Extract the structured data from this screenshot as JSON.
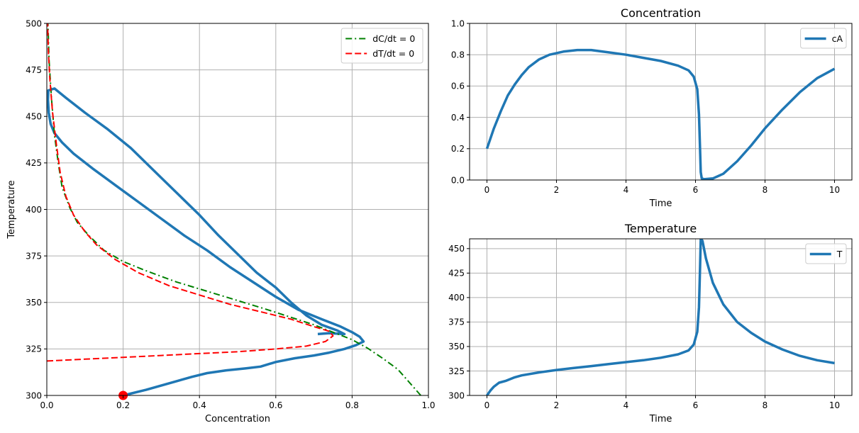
{
  "chart_data": [
    {
      "id": "phase",
      "type": "line",
      "title": "",
      "xlabel": "Concentration",
      "ylabel": "Temperature",
      "xlim": [
        0.0,
        1.0
      ],
      "ylim": [
        300,
        500
      ],
      "xticks": [
        0.0,
        0.2,
        0.4,
        0.6,
        0.8,
        1.0
      ],
      "xtick_labels": [
        "0.0",
        "0.2",
        "0.4",
        "0.6",
        "0.8",
        "1.0"
      ],
      "yticks": [
        300,
        325,
        350,
        375,
        400,
        425,
        450,
        475,
        500
      ],
      "ytick_labels": [
        "300",
        "325",
        "350",
        "375",
        "400",
        "425",
        "450",
        "475",
        "500"
      ],
      "grid": true,
      "legend": "top-right",
      "series": [
        {
          "name": "trajectory",
          "in_legend": false,
          "color": "#1f77b4",
          "style": "solid",
          "width": 3.5,
          "points": [
            [
              0.2,
              300
            ],
            [
              0.26,
              303
            ],
            [
              0.32,
              306.5
            ],
            [
              0.38,
              310
            ],
            [
              0.42,
              312
            ],
            [
              0.47,
              313.5
            ],
            [
              0.52,
              314.5
            ],
            [
              0.56,
              315.5
            ],
            [
              0.6,
              318
            ],
            [
              0.65,
              320
            ],
            [
              0.7,
              321.5
            ],
            [
              0.74,
              323
            ],
            [
              0.78,
              325
            ],
            [
              0.81,
              327
            ],
            [
              0.83,
              329
            ],
            [
              0.82,
              331.5
            ],
            [
              0.8,
              334
            ],
            [
              0.77,
              337
            ],
            [
              0.72,
              341
            ],
            [
              0.66,
              346
            ],
            [
              0.6,
              353
            ],
            [
              0.54,
              361
            ],
            [
              0.48,
              369
            ],
            [
              0.42,
              378
            ],
            [
              0.36,
              386
            ],
            [
              0.3,
              395
            ],
            [
              0.24,
              404
            ],
            [
              0.18,
              413
            ],
            [
              0.12,
              422
            ],
            [
              0.07,
              430
            ],
            [
              0.04,
              436
            ],
            [
              0.02,
              441
            ],
            [
              0.01,
              446
            ],
            [
              0.005,
              452
            ],
            [
              0.003,
              459
            ],
            [
              0.004,
              464
            ],
            [
              0.02,
              465
            ],
            [
              0.05,
              460
            ],
            [
              0.1,
              452
            ],
            [
              0.16,
              443
            ],
            [
              0.22,
              433
            ],
            [
              0.28,
              421
            ],
            [
              0.34,
              409
            ],
            [
              0.4,
              397
            ],
            [
              0.45,
              386
            ],
            [
              0.5,
              376
            ],
            [
              0.55,
              366
            ],
            [
              0.6,
              358
            ],
            [
              0.64,
              350
            ],
            [
              0.68,
              343
            ],
            [
              0.72,
              338
            ],
            [
              0.76,
              335
            ],
            [
              0.78,
              333
            ],
            [
              0.74,
              333.5
            ],
            [
              0.71,
              333
            ]
          ]
        },
        {
          "name": "dC/dt = 0",
          "in_legend": true,
          "color": "#008000",
          "style": "dashdot",
          "width": 2,
          "points": [
            [
              0.98,
              300
            ],
            [
              0.95,
              307
            ],
            [
              0.92,
              314
            ],
            [
              0.88,
              320
            ],
            [
              0.84,
              325.5
            ],
            [
              0.8,
              330
            ],
            [
              0.75,
              334
            ],
            [
              0.7,
              338
            ],
            [
              0.64,
              342
            ],
            [
              0.58,
              346
            ],
            [
              0.5,
              351
            ],
            [
              0.42,
              356
            ],
            [
              0.34,
              361
            ],
            [
              0.26,
              367
            ],
            [
              0.2,
              372
            ],
            [
              0.15,
              378
            ],
            [
              0.11,
              386
            ],
            [
              0.08,
              393
            ],
            [
              0.06,
              401
            ],
            [
              0.04,
              412
            ],
            [
              0.03,
              425
            ],
            [
              0.02,
              440
            ],
            [
              0.012,
              460
            ],
            [
              0.006,
              480
            ],
            [
              0.003,
              500
            ]
          ]
        },
        {
          "name": "dT/dt = 0",
          "in_legend": true,
          "color": "#ff0000",
          "style": "dashed",
          "width": 2,
          "points": [
            [
              0.0,
              318.5
            ],
            [
              0.1,
              319.5
            ],
            [
              0.2,
              320.5
            ],
            [
              0.3,
              321.5
            ],
            [
              0.4,
              322.5
            ],
            [
              0.5,
              323.5
            ],
            [
              0.6,
              325
            ],
            [
              0.68,
              326.5
            ],
            [
              0.73,
              329
            ],
            [
              0.75,
              332
            ],
            [
              0.74,
              334.5
            ],
            [
              0.7,
              337
            ],
            [
              0.64,
              341
            ],
            [
              0.56,
              345
            ],
            [
              0.48,
              349
            ],
            [
              0.4,
              354
            ],
            [
              0.32,
              359
            ],
            [
              0.24,
              366
            ],
            [
              0.18,
              373
            ],
            [
              0.13,
              381
            ],
            [
              0.1,
              388
            ],
            [
              0.07,
              397
            ],
            [
              0.05,
              407
            ],
            [
              0.035,
              420
            ],
            [
              0.025,
              435
            ],
            [
              0.015,
              452
            ],
            [
              0.008,
              470
            ],
            [
              0.004,
              485
            ],
            [
              0.002,
              500
            ]
          ]
        },
        {
          "name": "initial point",
          "in_legend": false,
          "type": "scatter",
          "color": "#ff0000",
          "points": [
            [
              0.2,
              300
            ]
          ]
        }
      ]
    },
    {
      "id": "conc",
      "type": "line",
      "title": "Concentration",
      "xlabel": "Time",
      "ylabel": "",
      "xlim": [
        -0.5,
        10.5
      ],
      "ylim": [
        0.0,
        1.0
      ],
      "xticks": [
        0,
        2,
        4,
        6,
        8,
        10
      ],
      "xtick_labels": [
        "0",
        "2",
        "4",
        "6",
        "8",
        "10"
      ],
      "yticks": [
        0.0,
        0.2,
        0.4,
        0.6,
        0.8,
        1.0
      ],
      "ytick_labels": [
        "0.0",
        "0.2",
        "0.4",
        "0.6",
        "0.8",
        "1.0"
      ],
      "grid": true,
      "legend": "top-right",
      "series": [
        {
          "name": "cA",
          "in_legend": true,
          "color": "#1f77b4",
          "style": "solid",
          "width": 3.5,
          "points": [
            [
              0,
              0.2
            ],
            [
              0.2,
              0.33
            ],
            [
              0.4,
              0.44
            ],
            [
              0.6,
              0.54
            ],
            [
              0.8,
              0.61
            ],
            [
              1.0,
              0.67
            ],
            [
              1.2,
              0.72
            ],
            [
              1.5,
              0.77
            ],
            [
              1.8,
              0.8
            ],
            [
              2.2,
              0.82
            ],
            [
              2.6,
              0.83
            ],
            [
              3.0,
              0.83
            ],
            [
              3.5,
              0.815
            ],
            [
              4.0,
              0.8
            ],
            [
              4.5,
              0.78
            ],
            [
              5.0,
              0.76
            ],
            [
              5.5,
              0.73
            ],
            [
              5.8,
              0.7
            ],
            [
              5.95,
              0.66
            ],
            [
              6.05,
              0.58
            ],
            [
              6.1,
              0.42
            ],
            [
              6.13,
              0.2
            ],
            [
              6.15,
              0.05
            ],
            [
              6.18,
              0.01
            ],
            [
              6.25,
              0.005
            ],
            [
              6.5,
              0.01
            ],
            [
              6.8,
              0.04
            ],
            [
              7.2,
              0.12
            ],
            [
              7.6,
              0.22
            ],
            [
              8.0,
              0.33
            ],
            [
              8.5,
              0.45
            ],
            [
              9.0,
              0.56
            ],
            [
              9.5,
              0.65
            ],
            [
              10.0,
              0.71
            ]
          ]
        }
      ]
    },
    {
      "id": "temp",
      "type": "line",
      "title": "Temperature",
      "xlabel": "Time",
      "ylabel": "",
      "xlim": [
        -0.5,
        10.5
      ],
      "ylim": [
        300,
        460
      ],
      "xticks": [
        0,
        2,
        4,
        6,
        8,
        10
      ],
      "xtick_labels": [
        "0",
        "2",
        "4",
        "6",
        "8",
        "10"
      ],
      "yticks": [
        300,
        325,
        350,
        375,
        400,
        425,
        450
      ],
      "ytick_labels": [
        "300",
        "325",
        "350",
        "375",
        "400",
        "425",
        "450"
      ],
      "grid": true,
      "legend": "top-right",
      "series": [
        {
          "name": "T",
          "in_legend": true,
          "color": "#1f77b4",
          "style": "solid",
          "width": 3.5,
          "points": [
            [
              0,
              300
            ],
            [
              0.1,
              305
            ],
            [
              0.2,
              309
            ],
            [
              0.35,
              313
            ],
            [
              0.55,
              315
            ],
            [
              0.8,
              318.5
            ],
            [
              1.0,
              320.5
            ],
            [
              1.5,
              323.5
            ],
            [
              2.0,
              326
            ],
            [
              2.5,
              328
            ],
            [
              3.0,
              330
            ],
            [
              3.5,
              332
            ],
            [
              4.0,
              334
            ],
            [
              4.5,
              336
            ],
            [
              5.0,
              338.5
            ],
            [
              5.5,
              342
            ],
            [
              5.8,
              346
            ],
            [
              5.95,
              352
            ],
            [
              6.05,
              365
            ],
            [
              6.1,
              390
            ],
            [
              6.13,
              430
            ],
            [
              6.15,
              460
            ],
            [
              6.2,
              458
            ],
            [
              6.3,
              440
            ],
            [
              6.5,
              415
            ],
            [
              6.8,
              393
            ],
            [
              7.2,
              375
            ],
            [
              7.6,
              364
            ],
            [
              8.0,
              355
            ],
            [
              8.5,
              347
            ],
            [
              9.0,
              340.5
            ],
            [
              9.5,
              336
            ],
            [
              10.0,
              333
            ]
          ]
        }
      ]
    }
  ]
}
